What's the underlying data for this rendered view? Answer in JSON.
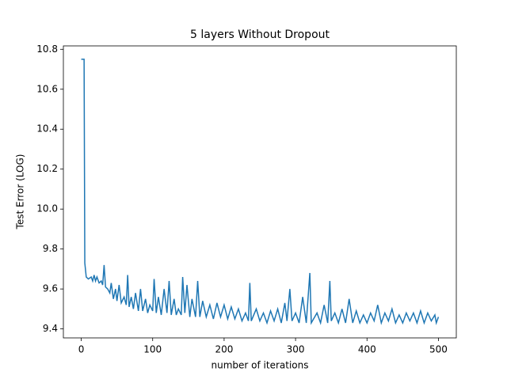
{
  "chart_data": {
    "type": "line",
    "title": "5 layers Without Dropout",
    "x_label": "number of iterations",
    "y_label": "Test Error (LOG)",
    "x": [
      0,
      4,
      5,
      7,
      10,
      14,
      16,
      18,
      20,
      22,
      25,
      28,
      30,
      32,
      34,
      37,
      40,
      42,
      45,
      48,
      50,
      53,
      56,
      60,
      63,
      65,
      67,
      70,
      73,
      76,
      80,
      83,
      86,
      90,
      93,
      96,
      100,
      102,
      105,
      108,
      112,
      116,
      120,
      123,
      126,
      130,
      133,
      136,
      140,
      142,
      145,
      148,
      152,
      155,
      160,
      163,
      166,
      170,
      175,
      180,
      185,
      190,
      195,
      200,
      205,
      210,
      215,
      220,
      225,
      230,
      234,
      236,
      238,
      245,
      250,
      255,
      260,
      265,
      270,
      275,
      280,
      285,
      288,
      292,
      295,
      300,
      305,
      310,
      315,
      320,
      322,
      330,
      335,
      340,
      345,
      348,
      350,
      355,
      360,
      365,
      370,
      375,
      380,
      385,
      390,
      395,
      400,
      405,
      410,
      415,
      420,
      425,
      430,
      435,
      440,
      445,
      450,
      455,
      460,
      465,
      470,
      475,
      480,
      485,
      490,
      495,
      497,
      500
    ],
    "series": [
      {
        "name": "test error",
        "color": "#1f77b4",
        "values": [
          10.75,
          10.75,
          9.73,
          9.66,
          9.65,
          9.66,
          9.64,
          9.67,
          9.64,
          9.66,
          9.63,
          9.64,
          9.62,
          9.72,
          9.61,
          9.6,
          9.58,
          9.63,
          9.55,
          9.6,
          9.54,
          9.62,
          9.53,
          9.56,
          9.52,
          9.67,
          9.51,
          9.56,
          9.5,
          9.58,
          9.49,
          9.6,
          9.49,
          9.55,
          9.48,
          9.52,
          9.49,
          9.65,
          9.48,
          9.56,
          9.47,
          9.6,
          9.48,
          9.64,
          9.47,
          9.55,
          9.47,
          9.5,
          9.47,
          9.66,
          9.48,
          9.62,
          9.46,
          9.55,
          9.46,
          9.64,
          9.46,
          9.54,
          9.46,
          9.52,
          9.45,
          9.53,
          9.46,
          9.52,
          9.45,
          9.51,
          9.45,
          9.5,
          9.44,
          9.48,
          9.44,
          9.63,
          9.44,
          9.5,
          9.44,
          9.48,
          9.43,
          9.49,
          9.44,
          9.5,
          9.43,
          9.53,
          9.44,
          9.6,
          9.44,
          9.48,
          9.43,
          9.56,
          9.43,
          9.68,
          9.43,
          9.48,
          9.43,
          9.52,
          9.43,
          9.64,
          9.44,
          9.48,
          9.43,
          9.5,
          9.43,
          9.55,
          9.43,
          9.49,
          9.43,
          9.47,
          9.43,
          9.48,
          9.44,
          9.52,
          9.43,
          9.48,
          9.44,
          9.5,
          9.43,
          9.47,
          9.43,
          9.48,
          9.44,
          9.48,
          9.43,
          9.49,
          9.43,
          9.48,
          9.44,
          9.47,
          9.43,
          9.46
        ]
      }
    ],
    "xlim": [
      -25,
      525
    ],
    "ylim": [
      9.355,
      10.817
    ],
    "xticks": [
      0,
      100,
      200,
      300,
      400,
      500
    ],
    "yticks": [
      9.4,
      9.6,
      9.8,
      {
        "value": 10,
        "label": "10.0"
      },
      10.2,
      10.4,
      10.6,
      10.8
    ]
  }
}
